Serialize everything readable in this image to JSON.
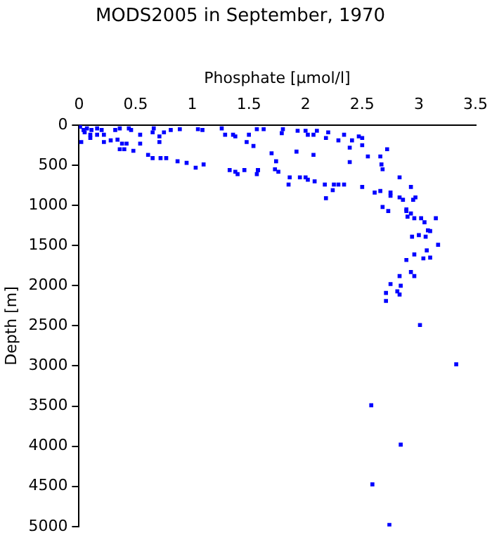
{
  "chart_data": {
    "type": "scatter",
    "title": "MODS2005 in September, 1970",
    "xlabel": "Phosphate [µmol/l]",
    "ylabel": "Depth [m]",
    "xlim": [
      0,
      3.5
    ],
    "xticks": [
      0,
      0.5,
      1,
      1.5,
      2,
      2.5,
      3,
      3.5
    ],
    "ylim": [
      5000,
      0
    ],
    "yticks": [
      0,
      500,
      1000,
      1500,
      2000,
      2500,
      3000,
      3500,
      4000,
      4500,
      5000
    ],
    "grid": false,
    "legend": false,
    "marker": "square",
    "series": [
      {
        "color": "#0000ff",
        "x": [
          0.01,
          0.04,
          0.07,
          0.11,
          0.16,
          0.2,
          0.1,
          0.16,
          0.05,
          0.02,
          0.1,
          0.22,
          0.22,
          0.28,
          0.32,
          0.34,
          0.36,
          0.44,
          0.46,
          0.38,
          0.4,
          0.36,
          0.42,
          0.48,
          0.54,
          0.54,
          0.61,
          0.65,
          0.66,
          0.71,
          0.71,
          0.75,
          0.81,
          0.89,
          0.65,
          0.72,
          0.77,
          0.87,
          0.95,
          1.03,
          1.1,
          1.05,
          1.09,
          1.26,
          1.29,
          1.36,
          1.38,
          1.5,
          1.48,
          1.57,
          1.33,
          1.38,
          1.4,
          1.46,
          1.58,
          1.54,
          1.58,
          1.57,
          1.63,
          1.8,
          1.79,
          1.93,
          2.0,
          2.02,
          2.1,
          2.07,
          2.18,
          2.2,
          2.29,
          2.34,
          2.41,
          2.47,
          2.5,
          2.5,
          2.39,
          2.72,
          2.55,
          2.66,
          2.39,
          2.67,
          2.68,
          2.83,
          1.7,
          1.92,
          2.07,
          1.74,
          1.73,
          1.76,
          1.86,
          1.85,
          1.95,
          2.0,
          2.02,
          2.08,
          2.17,
          2.25,
          2.29,
          2.34,
          2.24,
          2.18,
          2.5,
          2.61,
          2.66,
          2.75,
          2.75,
          2.68,
          2.83,
          2.86,
          2.93,
          2.95,
          2.97,
          2.89,
          2.9,
          2.73,
          2.89,
          2.93,
          2.96,
          3.02,
          3.05,
          3.15,
          3.08,
          3.1,
          3.06,
          3.0,
          2.94,
          3.17,
          3.07,
          2.96,
          3.04,
          3.1,
          2.89,
          2.93,
          2.96,
          2.83,
          2.75,
          2.84,
          2.81,
          2.83,
          2.71,
          2.71,
          3.01,
          3.33,
          2.58,
          2.84,
          2.59,
          2.74
        ],
        "values": [
          20,
          60,
          40,
          60,
          40,
          60,
          120,
          120,
          90,
          210,
          160,
          120,
          210,
          190,
          60,
          180,
          40,
          40,
          60,
          230,
          300,
          300,
          230,
          320,
          120,
          230,
          370,
          90,
          40,
          140,
          210,
          90,
          60,
          50,
          410,
          410,
          410,
          450,
          470,
          530,
          490,
          50,
          60,
          40,
          120,
          120,
          140,
          120,
          210,
          50,
          560,
          580,
          610,
          560,
          560,
          260,
          560,
          610,
          50,
          50,
          100,
          70,
          70,
          120,
          70,
          120,
          160,
          90,
          190,
          120,
          190,
          140,
          160,
          250,
          280,
          300,
          390,
          390,
          460,
          490,
          550,
          650,
          350,
          330,
          370,
          450,
          550,
          580,
          650,
          740,
          650,
          650,
          680,
          700,
          740,
          740,
          740,
          740,
          810,
          910,
          770,
          840,
          820,
          840,
          880,
          1020,
          900,
          930,
          770,
          930,
          900,
          1050,
          1140,
          1070,
          1070,
          1100,
          1160,
          1160,
          1210,
          1160,
          1310,
          1320,
          1390,
          1370,
          1390,
          1490,
          1560,
          1610,
          1660,
          1650,
          1680,
          1830,
          1880,
          1880,
          1980,
          2000,
          2070,
          2110,
          2090,
          2190,
          2490,
          2980,
          3490,
          3980,
          4475,
          4980
        ]
      }
    ]
  }
}
